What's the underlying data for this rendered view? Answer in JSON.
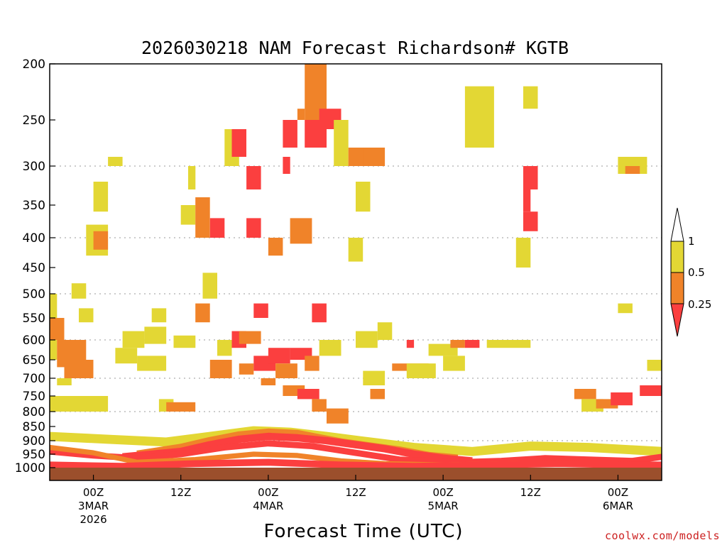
{
  "chart_data": {
    "type": "heatmap",
    "title": "2026030218 NAM Forecast Richardson# KGTB",
    "xlabel": "Forecast Time (UTC)",
    "ylabel": "",
    "credit": "coolwx.com/models",
    "y_axis": {
      "inverted": true,
      "range": [
        1000,
        200
      ],
      "ticks": [
        "200",
        "250",
        "300",
        "350",
        "400",
        "450",
        "500",
        "550",
        "600",
        "650",
        "700",
        "750",
        "800",
        "850",
        "900",
        "950",
        "1000"
      ],
      "gridlines_at": [
        300,
        400,
        500,
        600,
        700,
        800,
        900
      ]
    },
    "x_axis": {
      "range_hours": [
        0,
        84
      ],
      "ticks": [
        {
          "hour": 6,
          "lines": [
            "00Z",
            "3MAR",
            "2026"
          ]
        },
        {
          "hour": 18,
          "lines": [
            "12Z"
          ]
        },
        {
          "hour": 30,
          "lines": [
            "00Z",
            "4MAR"
          ]
        },
        {
          "hour": 42,
          "lines": [
            "12Z"
          ]
        },
        {
          "hour": 54,
          "lines": [
            "00Z",
            "5MAR"
          ]
        },
        {
          "hour": 66,
          "lines": [
            "12Z"
          ]
        },
        {
          "hour": 78,
          "lines": [
            "00Z",
            "6MAR"
          ]
        }
      ]
    },
    "legend": {
      "placement": "right",
      "labels": [
        "1",
        "0.5",
        "0.25"
      ],
      "bins": [
        {
          "range": "< 0.25",
          "color": "#fb3f3f"
        },
        {
          "range": "0.25 - 0.5",
          "color": "#f08329"
        },
        {
          "range": "0.5 - 1",
          "color": "#e3d734"
        },
        {
          "range": "> 1",
          "color": "#ffffff"
        }
      ]
    },
    "colors": {
      "red": "#fb3f3f",
      "orange": "#f08329",
      "yellow": "#e3d734",
      "ground": "#9b4f2c"
    },
    "cells": [
      {
        "t0": 0,
        "t1": 1,
        "p0": 650,
        "p1": 500,
        "cat": "yellow"
      },
      {
        "t0": 0,
        "t1": 2,
        "p0": 600,
        "p1": 550,
        "cat": "orange"
      },
      {
        "t0": 1,
        "t1": 5,
        "p0": 670,
        "p1": 600,
        "cat": "orange"
      },
      {
        "t0": 2,
        "t1": 6,
        "p0": 700,
        "p1": 650,
        "cat": "orange"
      },
      {
        "t0": 0,
        "t1": 8,
        "p0": 800,
        "p1": 750,
        "cat": "yellow"
      },
      {
        "t0": 1,
        "t1": 3,
        "p0": 720,
        "p1": 700,
        "cat": "yellow"
      },
      {
        "t0": 4,
        "t1": 6,
        "p0": 560,
        "p1": 530,
        "cat": "yellow"
      },
      {
        "t0": 3,
        "t1": 5,
        "p0": 510,
        "p1": 480,
        "cat": "yellow"
      },
      {
        "t0": 5,
        "t1": 8,
        "p0": 430,
        "p1": 380,
        "cat": "yellow"
      },
      {
        "t0": 6,
        "t1": 8,
        "p0": 420,
        "p1": 390,
        "cat": "orange"
      },
      {
        "t0": 6,
        "t1": 8,
        "p0": 360,
        "p1": 320,
        "cat": "yellow"
      },
      {
        "t0": 8,
        "t1": 10,
        "p0": 300,
        "p1": 290,
        "cat": "yellow"
      },
      {
        "t0": 9,
        "t1": 12,
        "p0": 660,
        "p1": 620,
        "cat": "yellow"
      },
      {
        "t0": 10,
        "t1": 13,
        "p0": 620,
        "p1": 580,
        "cat": "yellow"
      },
      {
        "t0": 12,
        "t1": 16,
        "p0": 680,
        "p1": 640,
        "cat": "yellow"
      },
      {
        "t0": 13,
        "t1": 16,
        "p0": 610,
        "p1": 570,
        "cat": "yellow"
      },
      {
        "t0": 14,
        "t1": 16,
        "p0": 560,
        "p1": 530,
        "cat": "yellow"
      },
      {
        "t0": 15,
        "t1": 17,
        "p0": 800,
        "p1": 760,
        "cat": "yellow"
      },
      {
        "t0": 16,
        "t1": 20,
        "p0": 800,
        "p1": 770,
        "cat": "orange"
      },
      {
        "t0": 17,
        "t1": 20,
        "p0": 620,
        "p1": 590,
        "cat": "yellow"
      },
      {
        "t0": 18,
        "t1": 20,
        "p0": 380,
        "p1": 350,
        "cat": "yellow"
      },
      {
        "t0": 19,
        "t1": 20,
        "p0": 330,
        "p1": 300,
        "cat": "yellow"
      },
      {
        "t0": 20,
        "t1": 22,
        "p0": 400,
        "p1": 340,
        "cat": "orange"
      },
      {
        "t0": 20,
        "t1": 22,
        "p0": 560,
        "p1": 520,
        "cat": "orange"
      },
      {
        "t0": 21,
        "t1": 23,
        "p0": 510,
        "p1": 460,
        "cat": "yellow"
      },
      {
        "t0": 22,
        "t1": 25,
        "p0": 700,
        "p1": 650,
        "cat": "orange"
      },
      {
        "t0": 22,
        "t1": 24,
        "p0": 400,
        "p1": 370,
        "cat": "red"
      },
      {
        "t0": 23,
        "t1": 25,
        "p0": 640,
        "p1": 600,
        "cat": "yellow"
      },
      {
        "t0": 24,
        "t1": 26,
        "p0": 300,
        "p1": 260,
        "cat": "yellow"
      },
      {
        "t0": 25,
        "t1": 27,
        "p0": 290,
        "p1": 260,
        "cat": "red"
      },
      {
        "t0": 25,
        "t1": 27,
        "p0": 620,
        "p1": 580,
        "cat": "red"
      },
      {
        "t0": 26,
        "t1": 29,
        "p0": 610,
        "p1": 580,
        "cat": "orange"
      },
      {
        "t0": 26,
        "t1": 28,
        "p0": 690,
        "p1": 660,
        "cat": "orange"
      },
      {
        "t0": 27,
        "t1": 29,
        "p0": 400,
        "p1": 370,
        "cat": "red"
      },
      {
        "t0": 27,
        "t1": 29,
        "p0": 330,
        "p1": 300,
        "cat": "red"
      },
      {
        "t0": 28,
        "t1": 31,
        "p0": 680,
        "p1": 640,
        "cat": "red"
      },
      {
        "t0": 29,
        "t1": 31,
        "p0": 720,
        "p1": 700,
        "cat": "orange"
      },
      {
        "t0": 28,
        "t1": 30,
        "p0": 550,
        "p1": 520,
        "cat": "red"
      },
      {
        "t0": 30,
        "t1": 32,
        "p0": 430,
        "p1": 400,
        "cat": "orange"
      },
      {
        "t0": 30,
        "t1": 33,
        "p0": 660,
        "p1": 620,
        "cat": "red"
      },
      {
        "t0": 31,
        "t1": 34,
        "p0": 700,
        "p1": 660,
        "cat": "orange"
      },
      {
        "t0": 32,
        "t1": 34,
        "p0": 280,
        "p1": 250,
        "cat": "red"
      },
      {
        "t0": 32,
        "t1": 33,
        "p0": 310,
        "p1": 290,
        "cat": "red"
      },
      {
        "t0": 32,
        "t1": 35,
        "p0": 750,
        "p1": 720,
        "cat": "orange"
      },
      {
        "t0": 33,
        "t1": 36,
        "p0": 410,
        "p1": 370,
        "cat": "orange"
      },
      {
        "t0": 33,
        "t1": 36,
        "p0": 650,
        "p1": 620,
        "cat": "red"
      },
      {
        "t0": 34,
        "t1": 37,
        "p0": 760,
        "p1": 730,
        "cat": "red"
      },
      {
        "t0": 35,
        "t1": 38,
        "p0": 280,
        "p1": 250,
        "cat": "red"
      },
      {
        "t0": 35,
        "t1": 38,
        "p0": 250,
        "p1": 200,
        "cat": "orange"
      },
      {
        "t0": 34,
        "t1": 35,
        "p0": 250,
        "p1": 240,
        "cat": "orange"
      },
      {
        "t0": 35,
        "t1": 37,
        "p0": 680,
        "p1": 640,
        "cat": "orange"
      },
      {
        "t0": 36,
        "t1": 38,
        "p0": 800,
        "p1": 760,
        "cat": "orange"
      },
      {
        "t0": 36,
        "t1": 38,
        "p0": 560,
        "p1": 520,
        "cat": "red"
      },
      {
        "t0": 37,
        "t1": 40,
        "p0": 260,
        "p1": 240,
        "cat": "red"
      },
      {
        "t0": 37,
        "t1": 40,
        "p0": 640,
        "p1": 600,
        "cat": "yellow"
      },
      {
        "t0": 38,
        "t1": 41,
        "p0": 840,
        "p1": 790,
        "cat": "orange"
      },
      {
        "t0": 39,
        "t1": 41,
        "p0": 300,
        "p1": 250,
        "cat": "yellow"
      },
      {
        "t0": 41,
        "t1": 44,
        "p0": 300,
        "p1": 280,
        "cat": "orange"
      },
      {
        "t0": 43,
        "t1": 46,
        "p0": 300,
        "p1": 280,
        "cat": "orange"
      },
      {
        "t0": 42,
        "t1": 44,
        "p0": 360,
        "p1": 320,
        "cat": "yellow"
      },
      {
        "t0": 41,
        "t1": 43,
        "p0": 440,
        "p1": 400,
        "cat": "yellow"
      },
      {
        "t0": 42,
        "t1": 45,
        "p0": 620,
        "p1": 580,
        "cat": "yellow"
      },
      {
        "t0": 43,
        "t1": 46,
        "p0": 720,
        "p1": 680,
        "cat": "yellow"
      },
      {
        "t0": 44,
        "t1": 46,
        "p0": 760,
        "p1": 730,
        "cat": "orange"
      },
      {
        "t0": 45,
        "t1": 47,
        "p0": 600,
        "p1": 560,
        "cat": "yellow"
      },
      {
        "t0": 47,
        "t1": 52,
        "p0": 680,
        "p1": 660,
        "cat": "orange"
      },
      {
        "t0": 49,
        "t1": 53,
        "p0": 700,
        "p1": 660,
        "cat": "yellow"
      },
      {
        "t0": 49,
        "t1": 50,
        "p0": 620,
        "p1": 600,
        "cat": "red"
      },
      {
        "t0": 52,
        "t1": 56,
        "p0": 640,
        "p1": 610,
        "cat": "yellow"
      },
      {
        "t0": 54,
        "t1": 57,
        "p0": 680,
        "p1": 640,
        "cat": "yellow"
      },
      {
        "t0": 55,
        "t1": 57,
        "p0": 620,
        "p1": 600,
        "cat": "orange"
      },
      {
        "t0": 57,
        "t1": 59,
        "p0": 620,
        "p1": 600,
        "cat": "red"
      },
      {
        "t0": 58,
        "t1": 60,
        "p0": 260,
        "p1": 230,
        "cat": "orange"
      },
      {
        "t0": 57,
        "t1": 61,
        "p0": 280,
        "p1": 220,
        "cat": "yellow"
      },
      {
        "t0": 60,
        "t1": 66,
        "p0": 620,
        "p1": 600,
        "cat": "yellow"
      },
      {
        "t0": 65,
        "t1": 67,
        "p0": 330,
        "p1": 300,
        "cat": "red"
      },
      {
        "t0": 65,
        "t1": 67,
        "p0": 390,
        "p1": 360,
        "cat": "red"
      },
      {
        "t0": 65,
        "t1": 66,
        "p0": 360,
        "p1": 330,
        "cat": "red"
      },
      {
        "t0": 64,
        "t1": 66,
        "p0": 450,
        "p1": 400,
        "cat": "yellow"
      },
      {
        "t0": 65,
        "t1": 67,
        "p0": 240,
        "p1": 220,
        "cat": "yellow"
      },
      {
        "t0": 72,
        "t1": 75,
        "p0": 760,
        "p1": 730,
        "cat": "orange"
      },
      {
        "t0": 73,
        "t1": 76,
        "p0": 800,
        "p1": 760,
        "cat": "yellow"
      },
      {
        "t0": 75,
        "t1": 78,
        "p0": 790,
        "p1": 760,
        "cat": "orange"
      },
      {
        "t0": 77,
        "t1": 80,
        "p0": 780,
        "p1": 740,
        "cat": "red"
      },
      {
        "t0": 78,
        "t1": 82,
        "p0": 310,
        "p1": 290,
        "cat": "yellow"
      },
      {
        "t0": 78,
        "t1": 80,
        "p0": 540,
        "p1": 520,
        "cat": "yellow"
      },
      {
        "t0": 81,
        "t1": 84,
        "p0": 750,
        "p1": 720,
        "cat": "red"
      },
      {
        "t0": 79,
        "t1": 81,
        "p0": 310,
        "p1": 300,
        "cat": "orange"
      },
      {
        "t0": 82,
        "t1": 84,
        "p0": 680,
        "p1": 650,
        "cat": "yellow"
      }
    ],
    "pbl_layers": [
      {
        "cat": "yellow",
        "width": 3.2,
        "points": [
          [
            0,
            885
          ],
          [
            8,
            895
          ],
          [
            16,
            905
          ],
          [
            22,
            885
          ],
          [
            28,
            865
          ],
          [
            33,
            870
          ],
          [
            38,
            885
          ],
          [
            44,
            905
          ],
          [
            50,
            925
          ],
          [
            58,
            940
          ],
          [
            66,
            920
          ],
          [
            74,
            925
          ],
          [
            84,
            940
          ]
        ]
      },
      {
        "cat": "orange",
        "width": 2.6,
        "points": [
          [
            12,
            950
          ],
          [
            18,
            925
          ],
          [
            22,
            900
          ],
          [
            26,
            880
          ],
          [
            30,
            870
          ],
          [
            34,
            875
          ],
          [
            37,
            890
          ],
          [
            40,
            905
          ],
          [
            44,
            920
          ],
          [
            48,
            935
          ],
          [
            52,
            955
          ],
          [
            56,
            965
          ]
        ]
      },
      {
        "cat": "red",
        "width": 2.6,
        "points": [
          [
            10,
            960
          ],
          [
            18,
            940
          ],
          [
            22,
            915
          ],
          [
            26,
            895
          ],
          [
            30,
            885
          ],
          [
            34,
            890
          ],
          [
            38,
            900
          ],
          [
            42,
            915
          ],
          [
            46,
            930
          ],
          [
            50,
            950
          ],
          [
            54,
            965
          ],
          [
            58,
            975
          ]
        ]
      },
      {
        "cat": "red",
        "width": 2.2,
        "points": [
          [
            0,
            940
          ],
          [
            6,
            955
          ],
          [
            12,
            965
          ],
          [
            18,
            950
          ],
          [
            24,
            925
          ],
          [
            30,
            910
          ],
          [
            36,
            920
          ],
          [
            42,
            945
          ],
          [
            48,
            970
          ],
          [
            56,
            980
          ],
          [
            62,
            975
          ],
          [
            68,
            965
          ],
          [
            74,
            970
          ],
          [
            80,
            975
          ],
          [
            84,
            960
          ]
        ]
      },
      {
        "cat": "orange",
        "width": 1.8,
        "points": [
          [
            0,
            925
          ],
          [
            6,
            945
          ],
          [
            12,
            980
          ],
          [
            20,
            970
          ],
          [
            28,
            950
          ],
          [
            34,
            955
          ],
          [
            40,
            975
          ],
          [
            46,
            985
          ],
          [
            54,
            990
          ],
          [
            64,
            985
          ],
          [
            74,
            985
          ],
          [
            84,
            990
          ]
        ]
      },
      {
        "cat": "red",
        "width": 2.4,
        "points": [
          [
            0,
            990
          ],
          [
            10,
            995
          ],
          [
            20,
            985
          ],
          [
            30,
            980
          ],
          [
            40,
            990
          ],
          [
            50,
            995
          ],
          [
            60,
            990
          ],
          [
            70,
            985
          ],
          [
            80,
            990
          ],
          [
            84,
            990
          ]
        ]
      }
    ]
  }
}
